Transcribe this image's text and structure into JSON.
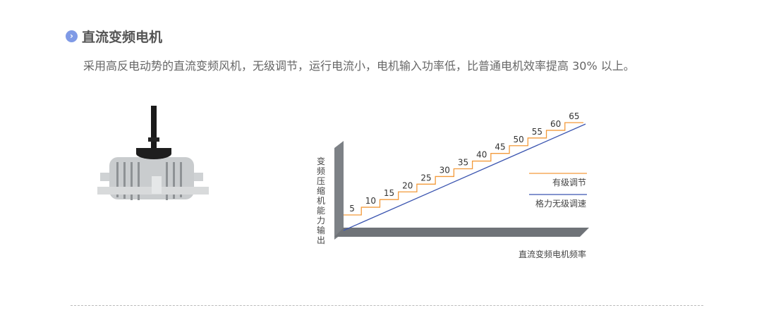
{
  "header": {
    "title": "直流变频电机",
    "icon": "chevron-right-circle-icon",
    "accent": "#7f9ae6"
  },
  "description": "采用高反电动势的直流变频风机，无级调节，运行电流小，电机输入功率低，比普通电机效率提高 30% 以上。",
  "diagram": {
    "y_axis_label": "变频压缩机能力输出",
    "x_axis_label": "直流变频电机频率",
    "step_labels": [
      "5",
      "10",
      "15",
      "20",
      "25",
      "30",
      "35",
      "40",
      "45",
      "50",
      "55",
      "60",
      "65"
    ],
    "legend": [
      {
        "label": "有级调节",
        "color": "#f39a3a"
      },
      {
        "label": "格力无级调速",
        "color": "#3b55b0"
      }
    ]
  }
}
